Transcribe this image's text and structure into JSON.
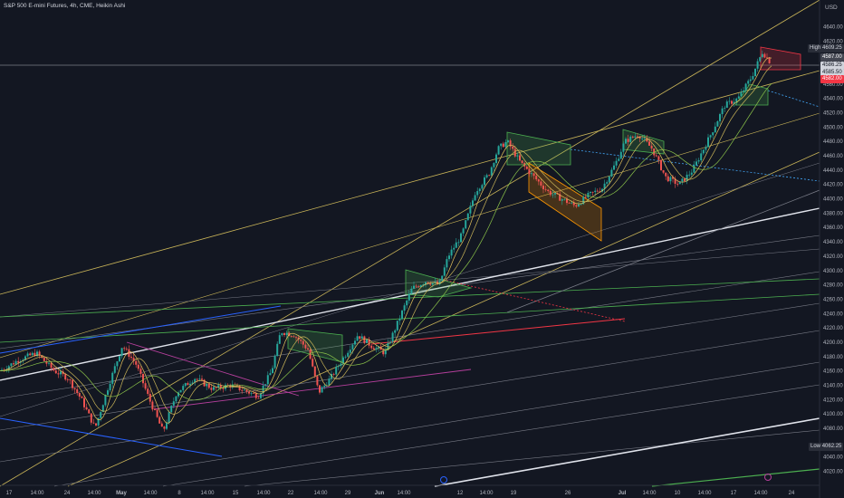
{
  "chart_title": "S&P 500 E-mini Futures, 4h, CME, Heikin Ashi",
  "currency": "USD",
  "price_axis_labels": [
    "4640.00",
    "4620.00",
    "4580.00",
    "4560.00",
    "4540.00",
    "4520.00",
    "4500.00",
    "4480.00",
    "4460.00",
    "4440.00",
    "4420.00",
    "4400.00",
    "4380.00",
    "4360.00",
    "4340.00",
    "4320.00",
    "4300.00",
    "4280.00",
    "4260.00",
    "4240.00",
    "4220.00",
    "4200.00",
    "4180.00",
    "4160.00",
    "4140.00",
    "4120.00",
    "4100.00",
    "4080.00",
    "4040.00",
    "4020.00"
  ],
  "time_axis_labels": [
    "17",
    "14:00",
    "24",
    "14:00",
    "May",
    "14:00",
    "8",
    "14:00",
    "15",
    "14:00",
    "22",
    "14:00",
    "29",
    "Jun",
    "14:00",
    "12",
    "14:00",
    "19",
    "26",
    "Jul",
    "14:00",
    "10",
    "14:00",
    "17",
    "14:00",
    "24"
  ],
  "markers": {
    "high_label": "High",
    "high_value": "4609.25",
    "current_price": "4587.00",
    "current_sub1": "4586.25",
    "current_sub2": "4585.50",
    "red_value": "4582.00",
    "low_label": "Low",
    "low_value": "4062.25"
  },
  "colors": {
    "background": "#131722",
    "up_candle": "#26a69a",
    "down_candle": "#ef5350",
    "channel_line": "#c9b458",
    "white_line": "#e0e3eb",
    "grey_line": "#787b86",
    "green_line": "#4caf50",
    "blue_line": "#2962ff",
    "magenta_line": "#b53f9c",
    "red_line": "#f23645"
  },
  "chart_data": {
    "type": "candlestick",
    "style": "Heikin Ashi",
    "symbol": "S&P 500 E-mini Futures",
    "interval": "4h",
    "exchange": "CME",
    "ylim": [
      4010,
      4660
    ],
    "grid": false,
    "approx_path": [
      [
        0,
        4160
      ],
      [
        20,
        4175
      ],
      [
        40,
        4185
      ],
      [
        60,
        4160
      ],
      [
        75,
        4150
      ],
      [
        90,
        4120
      ],
      [
        105,
        4080
      ],
      [
        120,
        4140
      ],
      [
        135,
        4195
      ],
      [
        150,
        4170
      ],
      [
        165,
        4120
      ],
      [
        180,
        4075
      ],
      [
        195,
        4130
      ],
      [
        215,
        4150
      ],
      [
        235,
        4135
      ],
      [
        255,
        4140
      ],
      [
        285,
        4125
      ],
      [
        300,
        4160
      ],
      [
        310,
        4215
      ],
      [
        325,
        4210
      ],
      [
        340,
        4190
      ],
      [
        352,
        4130
      ],
      [
        365,
        4150
      ],
      [
        380,
        4180
      ],
      [
        395,
        4210
      ],
      [
        410,
        4195
      ],
      [
        425,
        4185
      ],
      [
        440,
        4230
      ],
      [
        455,
        4275
      ],
      [
        470,
        4285
      ],
      [
        485,
        4280
      ],
      [
        495,
        4320
      ],
      [
        510,
        4350
      ],
      [
        525,
        4410
      ],
      [
        540,
        4435
      ],
      [
        550,
        4470
      ],
      [
        560,
        4480
      ],
      [
        575,
        4450
      ],
      [
        590,
        4430
      ],
      [
        605,
        4410
      ],
      [
        620,
        4400
      ],
      [
        635,
        4390
      ],
      [
        650,
        4405
      ],
      [
        665,
        4415
      ],
      [
        680,
        4450
      ],
      [
        690,
        4480
      ],
      [
        705,
        4490
      ],
      [
        720,
        4470
      ],
      [
        735,
        4430
      ],
      [
        750,
        4420
      ],
      [
        765,
        4440
      ],
      [
        785,
        4490
      ],
      [
        800,
        4530
      ],
      [
        815,
        4540
      ],
      [
        830,
        4570
      ],
      [
        842,
        4605
      ],
      [
        852,
        4588
      ]
    ]
  }
}
